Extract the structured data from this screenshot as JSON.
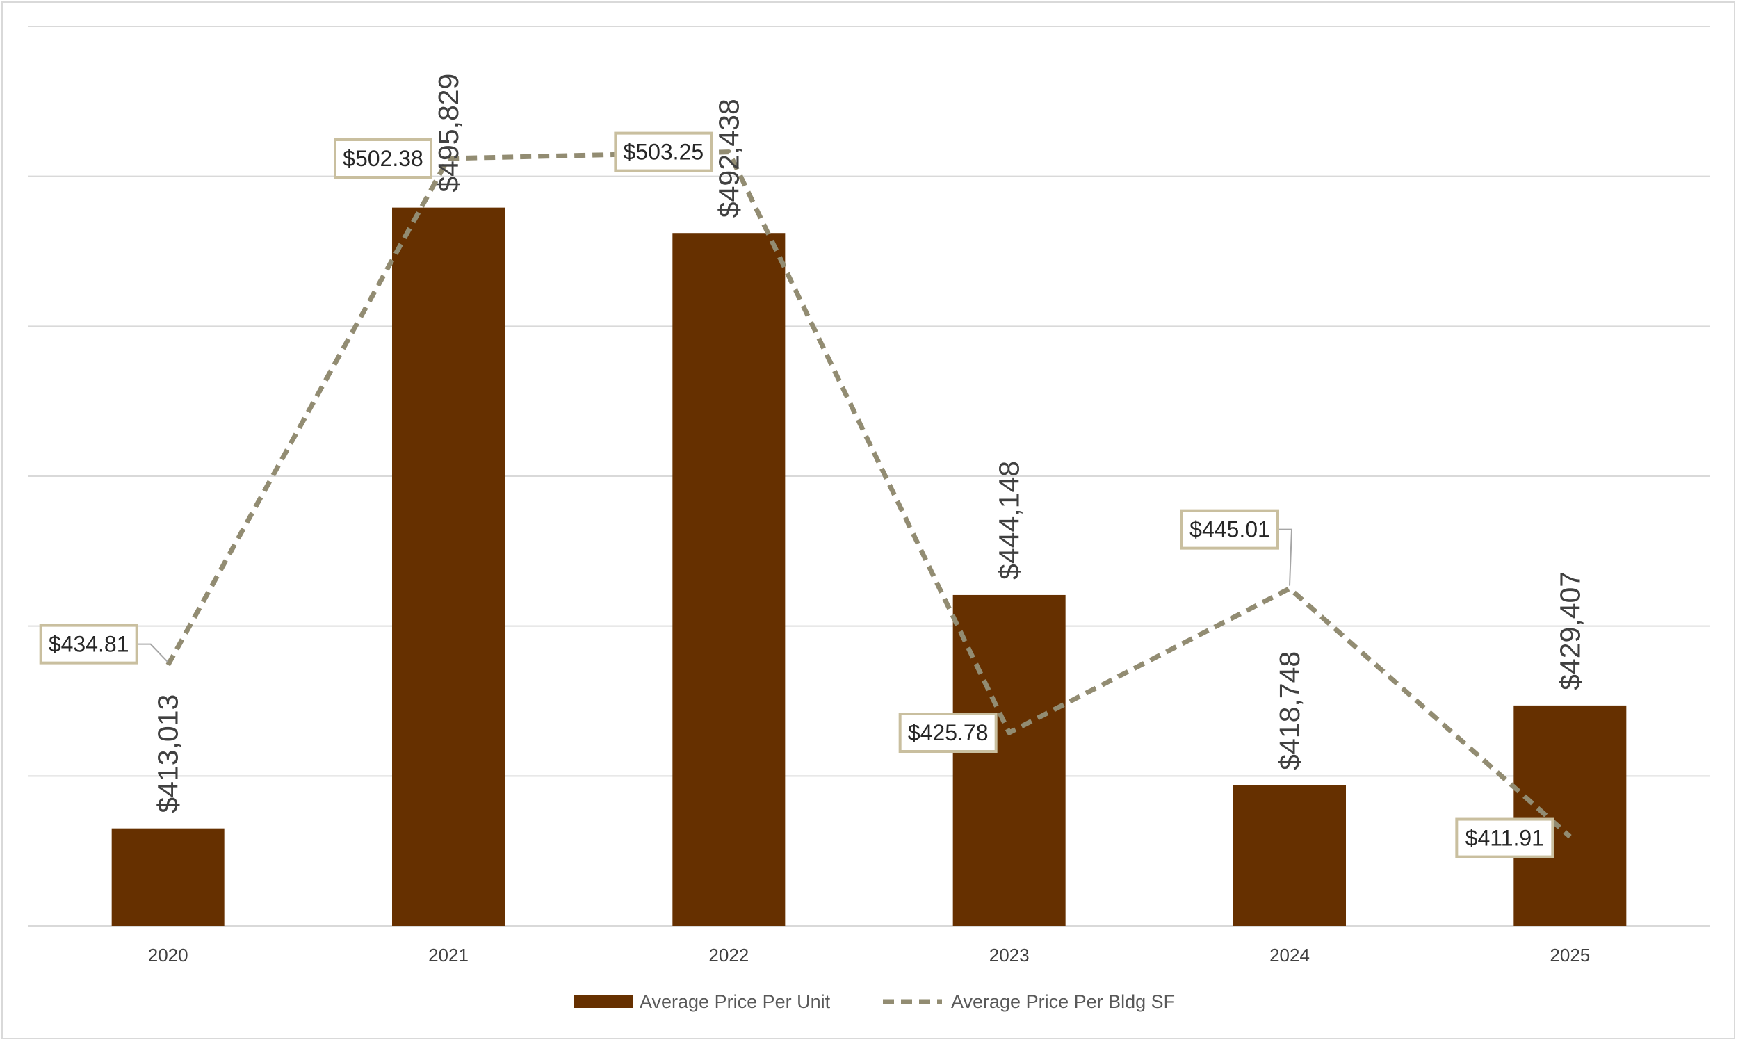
{
  "chart_data": {
    "type": "bar",
    "categories": [
      "2020",
      "2021",
      "2022",
      "2023",
      "2024",
      "2025"
    ],
    "series": [
      {
        "name": "Average Price Per Unit",
        "kind": "bar",
        "axis": "left",
        "values": [
          413013,
          495829,
          492438,
          444148,
          418748,
          429407
        ],
        "labels": [
          "$413,013",
          "$495,829",
          "$492,438",
          "$444,148",
          "$418,748",
          "$429,407"
        ],
        "color": "#663000"
      },
      {
        "name": "Average Price Per Bldg SF",
        "kind": "line",
        "style": "dashed",
        "axis": "right",
        "values": [
          434.81,
          502.38,
          503.25,
          425.78,
          445.01,
          411.91
        ],
        "labels": [
          "$434.81",
          "$502.38",
          "$503.25",
          "$425.78",
          "$445.01",
          "$411.91"
        ],
        "color": "#928c72"
      }
    ],
    "left_axis_range": [
      400000,
      520000
    ],
    "right_axis_range": [
      400000,
      520000
    ],
    "right_axis_scale_note": "line values x 1000 share the left axis scale",
    "grid": true,
    "legend_position": "bottom",
    "label_border_color": "#c9bf9f",
    "grid_color": "#d9d9d9"
  }
}
